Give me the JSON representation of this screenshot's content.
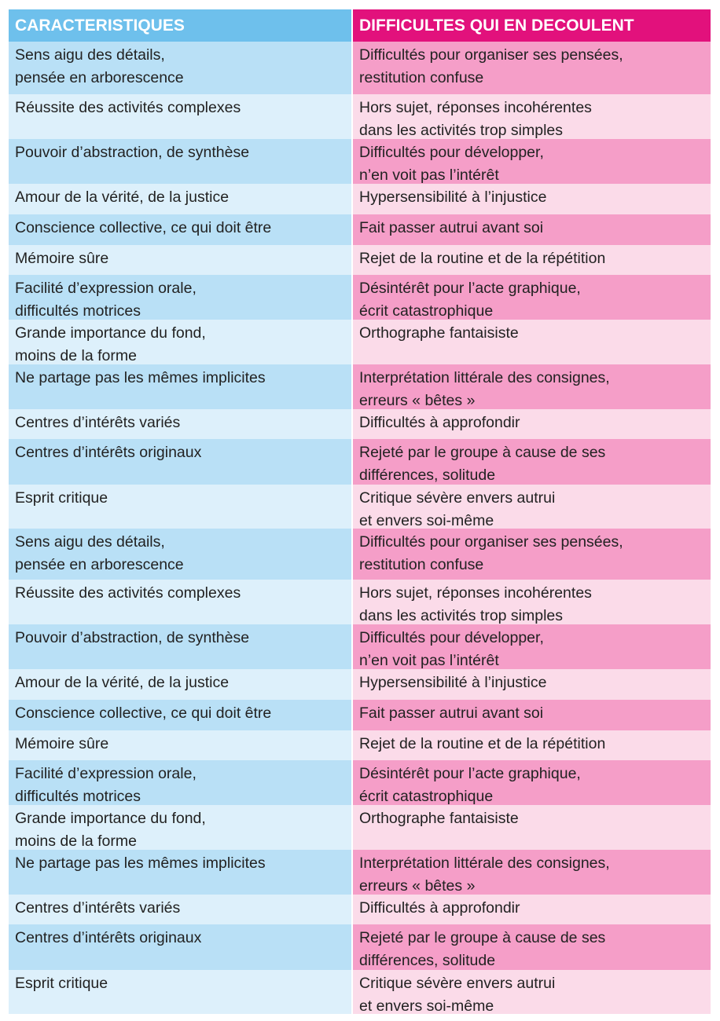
{
  "colors": {
    "header_left": "#6ec0ec",
    "header_right": "#e2117c",
    "row_left_dark": "#b9e0f6",
    "row_left_light": "#ddf0fb",
    "row_right_dark": "#f59ec8",
    "row_right_light": "#fbdbe9"
  },
  "header": {
    "left": "CARACTERISTIQUES",
    "right": "DIFFICULTES QUI EN DECOULENT"
  },
  "rows": [
    {
      "left": "Sens aigu des détails,\npensée en arborescence",
      "right": "Difficultés pour organiser ses pensées,\nrestitution confuse"
    },
    {
      "left": "Réussite des activités complexes",
      "right": "Hors sujet, réponses incohérentes\ndans les activités trop simples"
    },
    {
      "left": "Pouvoir d’abstraction, de synthèse",
      "right": "Difficultés pour développer,\nn’en voit pas l’intérêt"
    },
    {
      "left": "Amour de la vérité, de la justice",
      "right": "Hypersensibilité à l’injustice"
    },
    {
      "left": "Conscience collective, ce qui doit être",
      "right": "Fait passer autrui avant soi"
    },
    {
      "left": "Mémoire sûre",
      "right": "Rejet de la routine et de la répétition"
    },
    {
      "left": "Facilité d’expression orale,\ndifficultés motrices",
      "right": "Désintérêt pour l’acte graphique,\nécrit catastrophique"
    },
    {
      "left": "Grande importance du fond,\nmoins de la forme",
      "right": "Orthographe fantaisiste"
    },
    {
      "left": "Ne partage pas les mêmes implicites",
      "right": "Interprétation littérale des consignes,\nerreurs « bêtes »"
    },
    {
      "left": "Centres d’intérêts variés",
      "right": "Difficultés à approfondir"
    },
    {
      "left": "Centres d’intérêts originaux",
      "right": "Rejeté par le groupe à cause de ses\ndifférences, solitude"
    },
    {
      "left": "Esprit critique",
      "right": "Critique sévère envers autrui\net envers soi-même"
    },
    {
      "left": "Sens aigu des détails,\npensée en arborescence",
      "right": "Difficultés pour organiser ses pensées,\nrestitution confuse"
    },
    {
      "left": "Réussite des activités complexes",
      "right": "Hors sujet, réponses incohérentes\ndans les activités trop simples"
    },
    {
      "left": "Pouvoir d’abstraction, de synthèse",
      "right": "Difficultés pour développer,\nn’en voit pas l’intérêt"
    },
    {
      "left": "Amour de la vérité, de la justice",
      "right": "Hypersensibilité à l’injustice"
    },
    {
      "left": "Conscience collective, ce qui doit être",
      "right": "Fait passer autrui avant soi"
    },
    {
      "left": "Mémoire sûre",
      "right": "Rejet de la routine et de la répétition"
    },
    {
      "left": "Facilité d’expression orale,\ndifficultés motrices",
      "right": "Désintérêt pour l’acte graphique,\nécrit catastrophique"
    },
    {
      "left": "Grande importance du fond,\nmoins de la forme",
      "right": "Orthographe fantaisiste"
    },
    {
      "left": "Ne partage pas les mêmes implicites",
      "right": "Interprétation littérale des consignes,\nerreurs « bêtes »"
    },
    {
      "left": "Centres d’intérêts variés",
      "right": "Difficultés à approfondir"
    },
    {
      "left": "Centres d’intérêts originaux",
      "right": "Rejeté par le groupe à cause de ses\ndifférences, solitude"
    },
    {
      "left": "Esprit critique",
      "right": "Critique sévère envers autrui\net envers soi-même"
    }
  ]
}
